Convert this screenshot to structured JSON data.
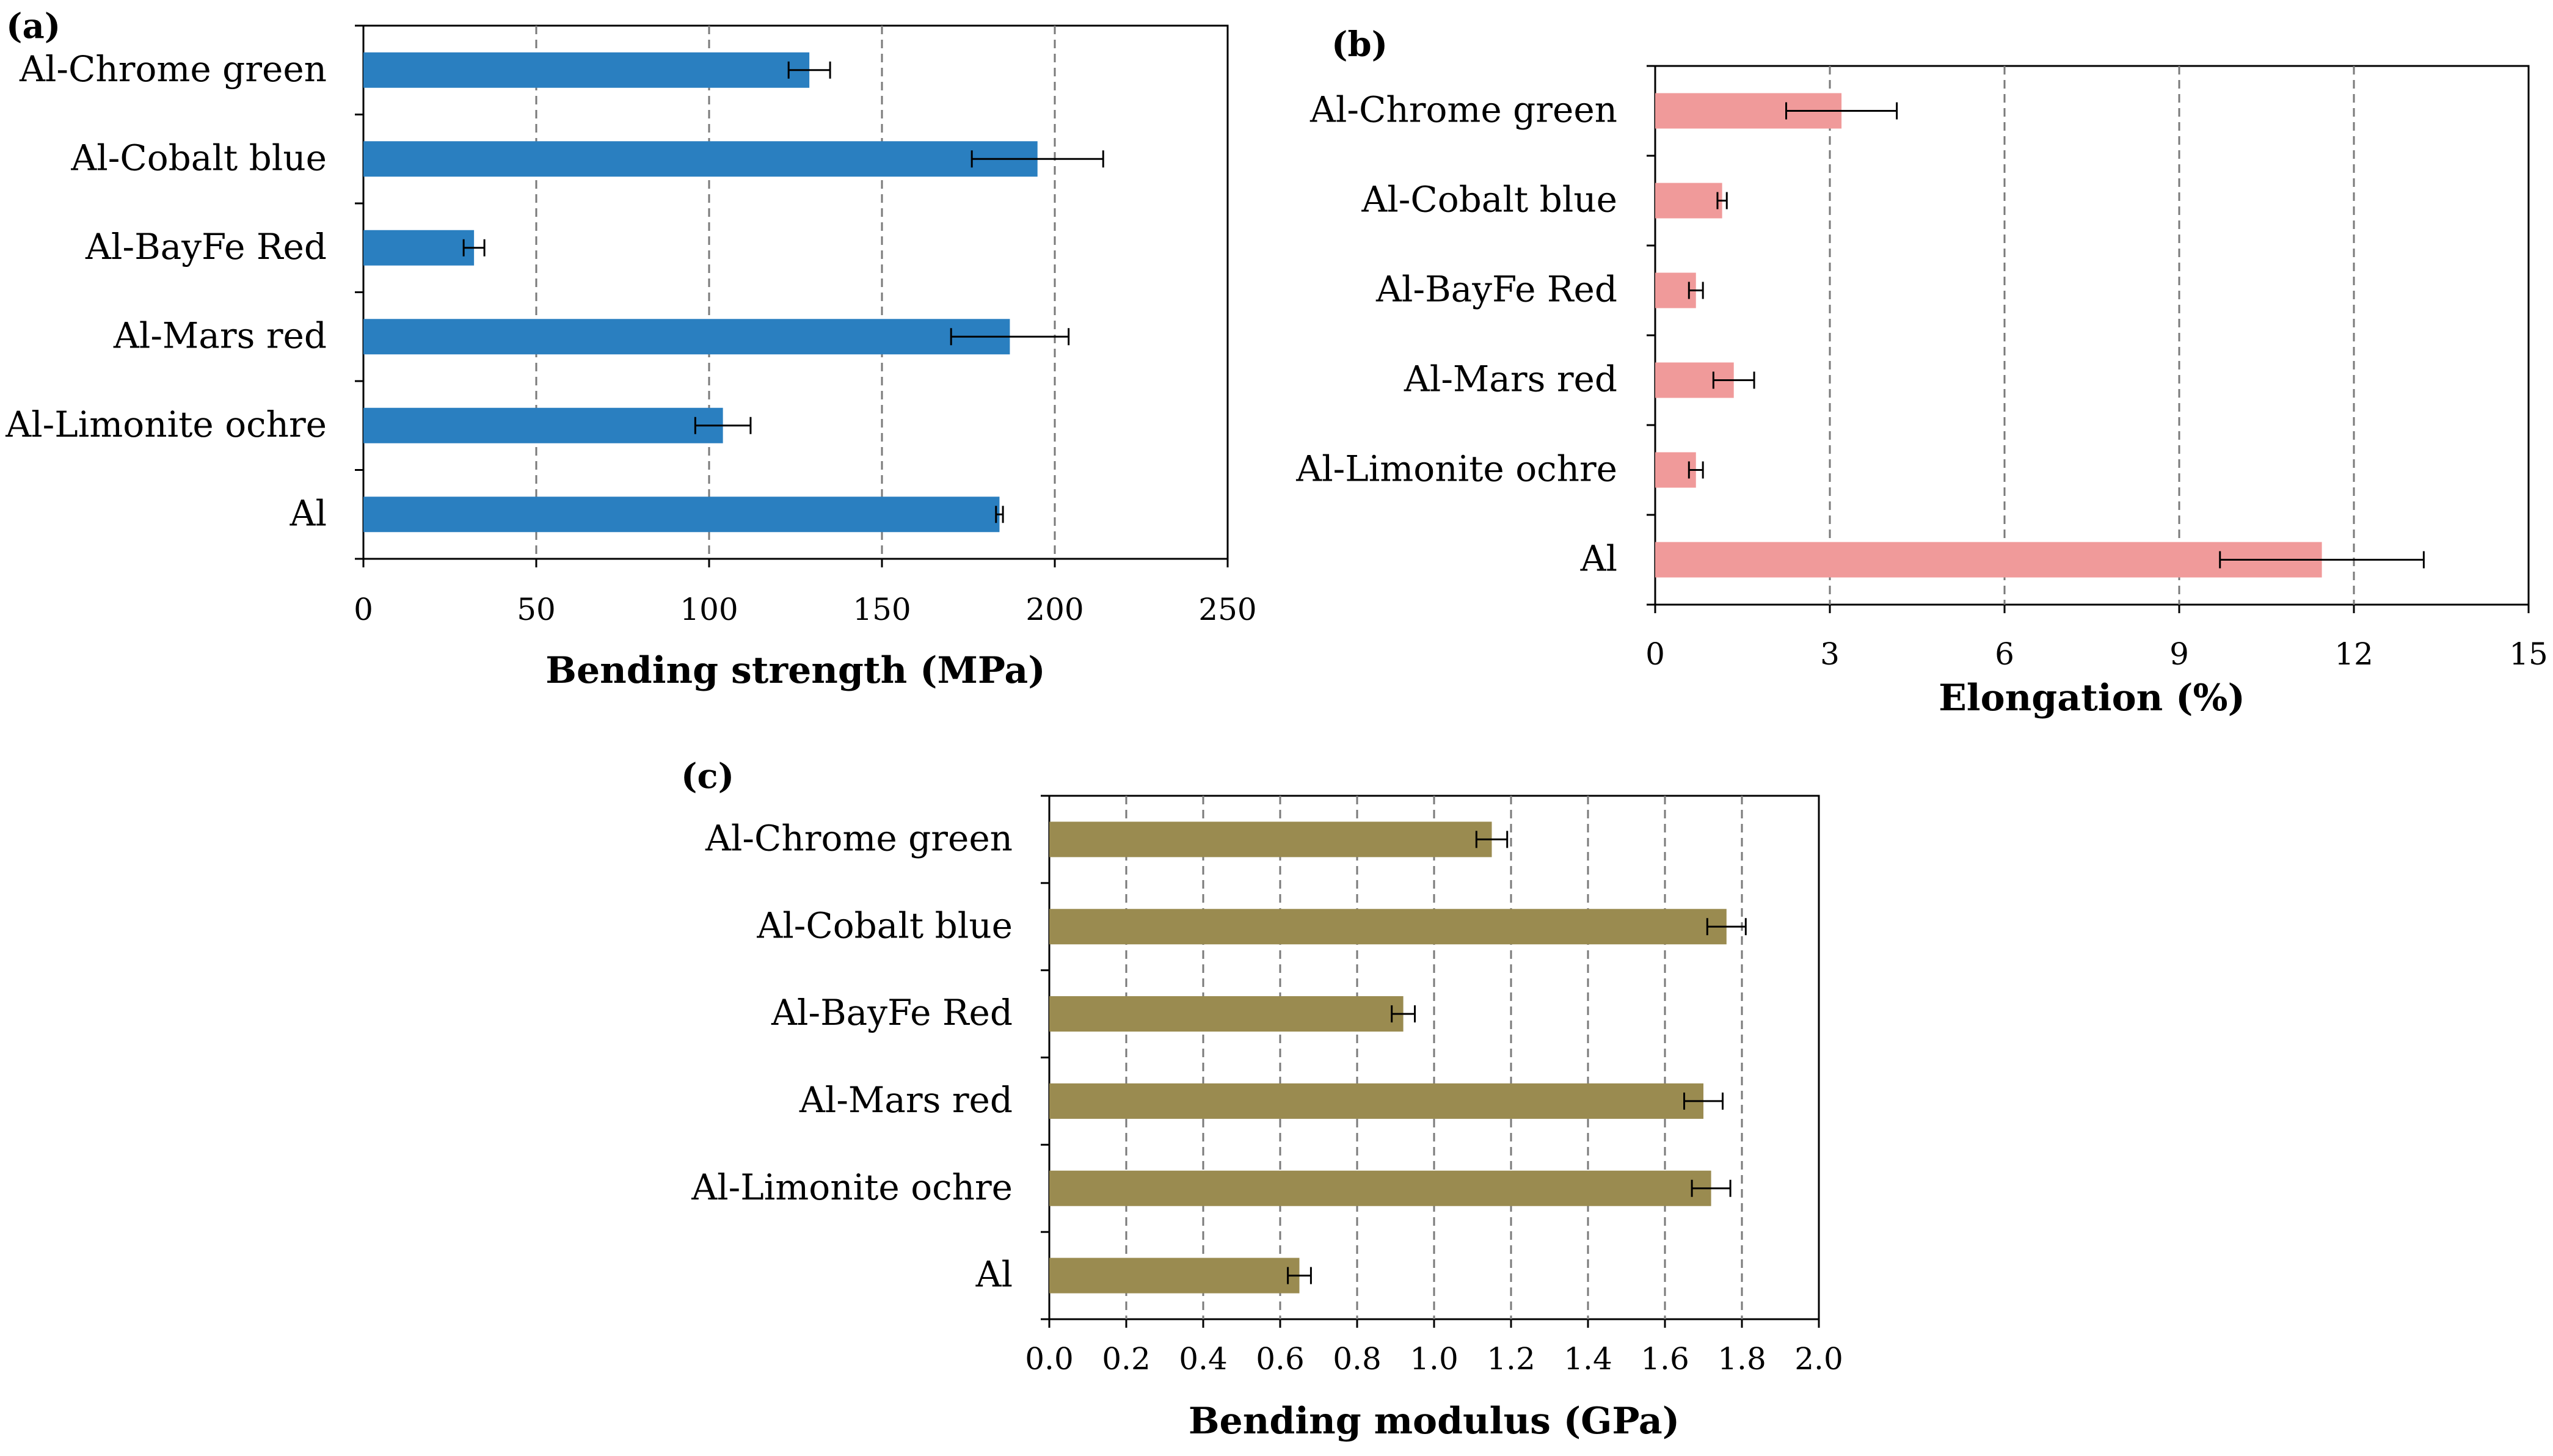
{
  "figure": {
    "panels": [
      "(a)",
      "(b)",
      "(c)"
    ]
  },
  "chart_data": [
    {
      "panel": "(a)",
      "type": "bar",
      "orientation": "horizontal",
      "categories": [
        "Al-Chrome green",
        "Al-Cobalt blue",
        "Al-BayFe Red",
        "Al-Mars red",
        "Al-Limonite ochre",
        "Al"
      ],
      "values": [
        129,
        195,
        32,
        187,
        104,
        184
      ],
      "errors": [
        6,
        19,
        3,
        17,
        8,
        1
      ],
      "xlabel": "Bending strength (MPa)",
      "xlim": [
        0,
        250
      ],
      "xticks": [
        "0",
        "50",
        "100",
        "150",
        "200",
        "250"
      ],
      "grid": "vertical dashed",
      "color": "#2a7fc0"
    },
    {
      "panel": "(b)",
      "type": "bar",
      "orientation": "horizontal",
      "categories": [
        "Al-Chrome green",
        "Al-Cobalt blue",
        "Al-BayFe Red",
        "Al-Mars red",
        "Al-Limonite ochre",
        "Al"
      ],
      "values": [
        3.2,
        1.15,
        0.7,
        1.35,
        0.7,
        11.45
      ],
      "errors": [
        0.95,
        0.08,
        0.12,
        0.35,
        0.12,
        1.75
      ],
      "xlabel": "Elongation (%)",
      "xlim": [
        0,
        15
      ],
      "xticks": [
        "0",
        "3",
        "6",
        "9",
        "12",
        "15"
      ],
      "grid": "vertical dashed",
      "color": "#f09a9a"
    },
    {
      "panel": "(c)",
      "type": "bar",
      "orientation": "horizontal",
      "categories": [
        "Al-Chrome green",
        "Al-Cobalt blue",
        "Al-BayFe Red",
        "Al-Mars red",
        "Al-Limonite ochre",
        "Al"
      ],
      "values": [
        1.15,
        1.76,
        0.92,
        1.7,
        1.72,
        0.65
      ],
      "errors": [
        0.04,
        0.05,
        0.03,
        0.05,
        0.05,
        0.03
      ],
      "xlabel": "Bending modulus (GPa)",
      "xlim": [
        0,
        2
      ],
      "xticks": [
        "0.0",
        "0.2",
        "0.4",
        "0.6",
        "0.8",
        "1.0",
        "1.2",
        "1.4",
        "1.6",
        "1.8",
        "2.0"
      ],
      "grid": "vertical dashed",
      "color": "#9a8b50"
    }
  ]
}
